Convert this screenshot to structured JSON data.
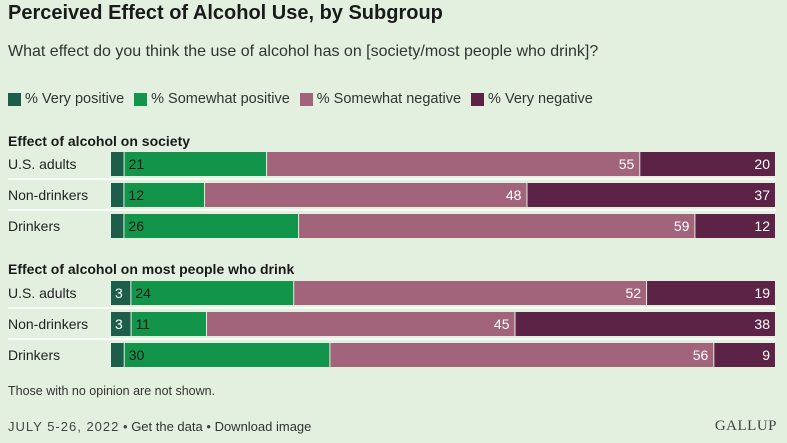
{
  "title": "Perceived Effect of Alcohol Use, by Subgroup",
  "subtitle": "What effect do you think the use of alcohol has on [society/most people who drink]?",
  "legend": [
    {
      "label": "% Very positive",
      "color": "#1d5e4b"
    },
    {
      "label": "% Somewhat positive",
      "color": "#12954a"
    },
    {
      "label": "% Somewhat negative",
      "color": "#a2647a"
    },
    {
      "label": "% Very negative",
      "color": "#5c2346"
    }
  ],
  "chart_data": {
    "type": "bar",
    "orientation": "horizontal",
    "stacked": true,
    "series": [
      {
        "name": "% Very positive",
        "color": "#1d5e4b"
      },
      {
        "name": "% Somewhat positive",
        "color": "#12954a"
      },
      {
        "name": "% Somewhat negative",
        "color": "#a2647a"
      },
      {
        "name": "% Very negative",
        "color": "#5c2346"
      }
    ],
    "groups": [
      {
        "heading": "Effect of alcohol on society",
        "rows": [
          {
            "category": "U.S. adults",
            "values": [
              2,
              21,
              55,
              20
            ],
            "labels": [
              "",
              "21",
              "55",
              "20"
            ]
          },
          {
            "category": "Non-drinkers",
            "values": [
              2,
              12,
              48,
              37
            ],
            "labels": [
              "",
              "12",
              "48",
              "37"
            ]
          },
          {
            "category": "Drinkers",
            "values": [
              2,
              26,
              59,
              12
            ],
            "labels": [
              "",
              "26",
              "59",
              "12"
            ]
          }
        ]
      },
      {
        "heading": "Effect of alcohol on most people who drink",
        "rows": [
          {
            "category": "U.S. adults",
            "values": [
              3,
              24,
              52,
              19
            ],
            "labels": [
              "3",
              "24",
              "52",
              "19"
            ]
          },
          {
            "category": "Non-drinkers",
            "values": [
              3,
              11,
              45,
              38
            ],
            "labels": [
              "3",
              "11",
              "45",
              "38"
            ]
          },
          {
            "category": "Drinkers",
            "values": [
              2,
              30,
              56,
              9
            ],
            "labels": [
              "",
              "30",
              "56",
              "9"
            ]
          }
        ]
      }
    ],
    "xlim": [
      0,
      100
    ],
    "grid": false,
    "legend_position": "top-left"
  },
  "note": "Those with no opinion are not shown.",
  "footer": {
    "date": "JULY 5-26, 2022",
    "separator": "•",
    "get_data": "Get the data",
    "download": "Download image"
  },
  "brand": "GALLUP"
}
